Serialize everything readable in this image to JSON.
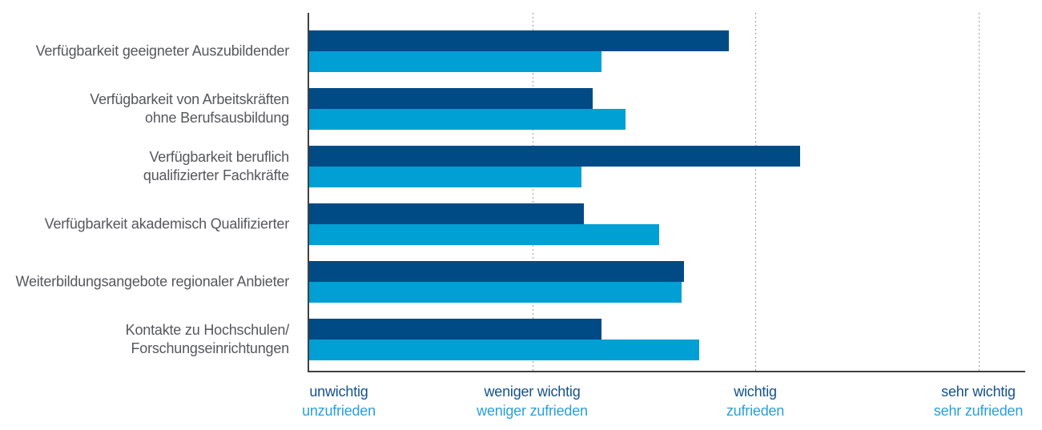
{
  "chart_data": {
    "type": "bar",
    "orientation": "horizontal",
    "title": "",
    "legend": "none",
    "categories": [
      [
        "Verfügbarkeit geeigneter Auszubildender"
      ],
      [
        "Verfügbarkeit von Arbeitskräften",
        "ohne Berufsausbildung"
      ],
      [
        "Verfügbarkeit beruflich",
        "qualifizierter Fachkräfte"
      ],
      [
        "Verfügbarkeit akademisch Qualifizierter"
      ],
      [
        "Weiterbildungsangebote regionaler Anbieter"
      ],
      [
        "Kontakte zu Hochschulen/",
        "Forschungseinrichtungen"
      ]
    ],
    "series": [
      {
        "key": "wichtigkeit",
        "color": "#004b85",
        "values": [
          2.88,
          2.27,
          3.2,
          2.23,
          2.68,
          2.31
        ]
      },
      {
        "key": "zufriedenheit",
        "color": "#009fd4",
        "values": [
          2.31,
          2.42,
          2.22,
          2.57,
          2.67,
          2.75
        ]
      }
    ],
    "value_axis": {
      "min": 1,
      "max": 4.2,
      "gridline_values": [
        2,
        3,
        4
      ],
      "gridline_style": "dotted",
      "tick_labels": [
        {
          "value": 1,
          "wichtigkeit": "unwichtig",
          "zufriedenheit": "unzufrieden"
        },
        {
          "value": 2,
          "wichtigkeit": "weniger wichtig",
          "zufriedenheit": "weniger zufrieden"
        },
        {
          "value": 3,
          "wichtigkeit": "wichtig",
          "zufriedenheit": "zufrieden"
        },
        {
          "value": 4,
          "wichtigkeit": "sehr wichtig",
          "zufriedenheit": "sehr zufrieden"
        }
      ]
    },
    "colors": {
      "bar_dark": "#004b85",
      "bar_light": "#009fd4",
      "category_text": "#56575b",
      "tick_text_wichtigkeit": "#15518c",
      "tick_text_zufriedenheit": "#2a9fd8",
      "axis_line": "#404040",
      "gridline": "#9a9a9a",
      "background": "#ffffff"
    }
  }
}
